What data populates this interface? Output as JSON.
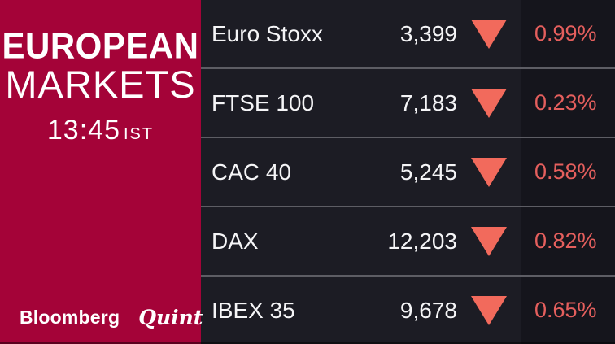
{
  "brand": {
    "title_line1": "EUROPEAN",
    "title_line2": "MARKETS",
    "time": "13:45",
    "time_zone": "IST",
    "logo_primary": "Bloomberg",
    "logo_secondary": "Quint",
    "panel_color": "#A40338"
  },
  "market_table": {
    "rows": [
      {
        "name": "Euro Stoxx",
        "value": "3,399",
        "direction": "down",
        "change": "0.99%"
      },
      {
        "name": "FTSE 100",
        "value": "7,183",
        "direction": "down",
        "change": "0.23%"
      },
      {
        "name": "CAC 40",
        "value": "5,245",
        "direction": "down",
        "change": "0.58%"
      },
      {
        "name": "DAX",
        "value": "12,203",
        "direction": "down",
        "change": "0.82%"
      },
      {
        "name": "IBEX 35",
        "value": "9,678",
        "direction": "down",
        "change": "0.65%"
      }
    ],
    "colors": {
      "table_bg": "#1C1C24",
      "change_column_bg": "#15151C",
      "divider": "#5D5D64",
      "down_arrow": "#F26A5C",
      "change_text": "#E55F5D",
      "index_text": "#F5F5F7"
    }
  }
}
